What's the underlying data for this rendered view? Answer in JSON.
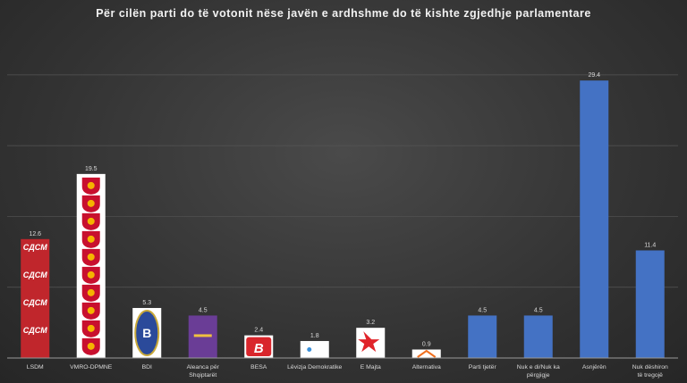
{
  "chart_data": {
    "type": "bar",
    "title": "Për cilën parti do të votonit nëse javën e ardhshme do të kishte zgjedhje parlamentare",
    "xlabel": "",
    "ylabel": "",
    "ylim": [
      0,
      35
    ],
    "grid": true,
    "categories": [
      "LSDM",
      "VMRO-DPMNE",
      "BDI",
      "Aleanca për Shqiptarët",
      "BESA",
      "Lëvizja Demokratike",
      "E Majta",
      "Alternativa",
      "Parti tjetër",
      "Nuk e di/Nuk ka përgjigje",
      "Asnjërën",
      "Nuk dëshiron të tregojë"
    ],
    "values": [
      12.6,
      19.5,
      5.3,
      4.5,
      2.4,
      1.8,
      3.2,
      0.9,
      4.5,
      4.5,
      29.4,
      11.4
    ],
    "bar_styles": [
      "sdsm-logo",
      "vmro-logo",
      "bdi-logo",
      "aleanca-logo",
      "besa-logo",
      "ld-logo",
      "emajta-logo",
      "alternativa-logo",
      "plain",
      "plain",
      "plain",
      "plain"
    ],
    "logo_text": {
      "sdsm-logo": "СДСМ"
    },
    "colors": {
      "bar": "#4472c4",
      "sdsm": "#c0262c",
      "vmro": "#c8102e",
      "aleanca": "#6a3d96",
      "besa": "#d9262c"
    }
  }
}
